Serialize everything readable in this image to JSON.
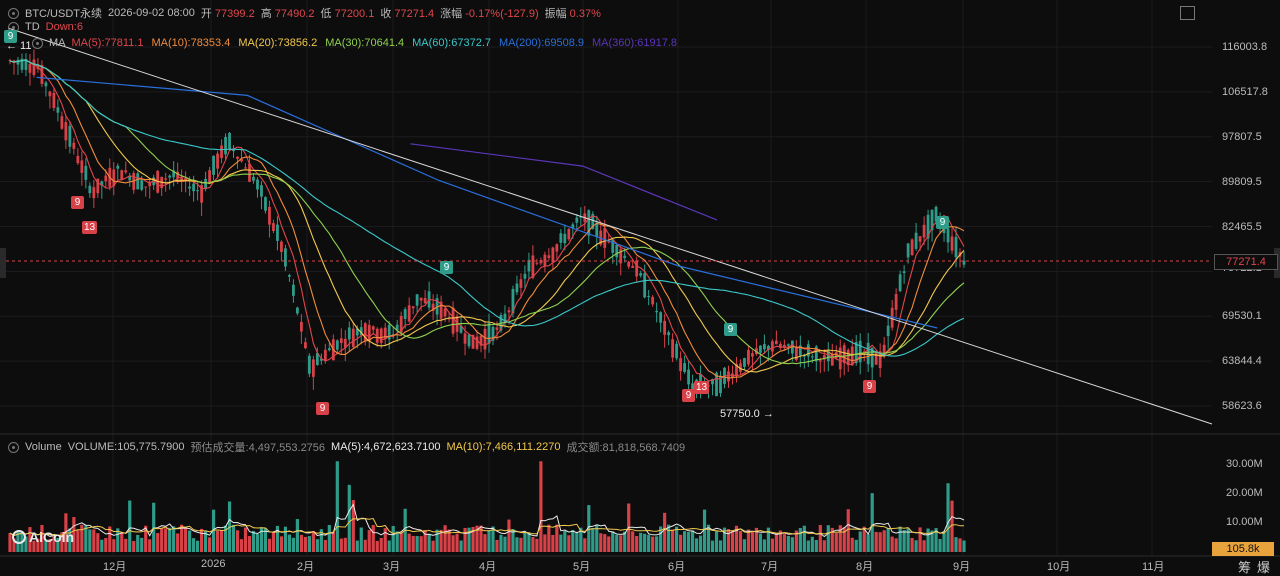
{
  "header": {
    "symbol": "BTC/USDT永续",
    "datetime": "2026-09-02 08:00",
    "open_label": "开",
    "open": "77399.2",
    "high_label": "高",
    "high": "77490.2",
    "low_label": "低",
    "low": "77200.1",
    "close_label": "收",
    "close": "77271.4",
    "change_label": "涨幅",
    "change": "-0.17%(-127.9)",
    "amp_label": "振幅",
    "amp": "0.37%"
  },
  "td": {
    "label": "TD",
    "value": "Down:6"
  },
  "ma": {
    "label": "MA",
    "items": [
      {
        "text": "MA(5):77811.1",
        "color": "#e0464b"
      },
      {
        "text": "MA(10):78353.4",
        "color": "#f08c3c"
      },
      {
        "text": "MA(20):73856.2",
        "color": "#f2c94c"
      },
      {
        "text": "MA(30):70641.4",
        "color": "#8fd14f"
      },
      {
        "text": "MA(60):67372.7",
        "color": "#3bc8c8"
      },
      {
        "text": "MA(200):69508.9",
        "color": "#2a6fdb"
      },
      {
        "text": "MA(360):61917.8",
        "color": "#5b36b8"
      }
    ]
  },
  "volume": {
    "label": "Volume",
    "vol": "VOLUME:105,775.7900",
    "est": "预估成交量:4,497,553.2756",
    "ma5": "MA(5):4,672,623.7100",
    "ma10": "MA(10):7,466,111.2270",
    "turnover": "成交额:81,818,568.7409"
  },
  "price_axis": [
    "116003.8",
    "106517.8",
    "97807.5",
    "89809.5",
    "82465.5",
    "75722.1",
    "69530.1",
    "63844.4",
    "58623.6"
  ],
  "current_price": "77271.4",
  "volume_axis": [
    "30.00M",
    "20.00M",
    "10.00M"
  ],
  "current_volume": "105.8k",
  "time_axis": [
    "12月",
    "2026",
    "2月",
    "3月",
    "4月",
    "5月",
    "6月",
    "7月",
    "8月",
    "9月",
    "10月",
    "11月"
  ],
  "annotations": {
    "low_value": "57750.0",
    "left_arrow": "← 11",
    "td_badges": [
      {
        "text": "9",
        "type": "green"
      },
      {
        "text": "9",
        "type": "red"
      },
      {
        "text": "13",
        "type": "red"
      },
      {
        "text": "9",
        "type": "red"
      },
      {
        "text": "9",
        "type": "green"
      },
      {
        "text": "9",
        "type": "green"
      },
      {
        "text": "9",
        "type": "red"
      },
      {
        "text": "13",
        "type": "red"
      },
      {
        "text": "9",
        "type": "red"
      },
      {
        "text": "9",
        "type": "green"
      }
    ]
  },
  "logo": "AiCoin",
  "toolbar": {
    "chip": "筹",
    "burst": "爆"
  },
  "colors": {
    "up": "#2f9c8a",
    "down": "#d74147",
    "background": "#0d0d0e",
    "trendline": "#d8d8d8"
  },
  "chart_data": {
    "type": "candlestick",
    "title": "BTC/USDT永续",
    "ylim": [
      55000,
      120000
    ],
    "price_ticks": [
      116003.8,
      106517.8,
      97807.5,
      89809.5,
      82465.5,
      75722.1,
      69530.1,
      63844.4,
      58623.6
    ],
    "volume_ticks": [
      30000000,
      20000000,
      10000000
    ],
    "series": [
      {
        "name": "MA(200)",
        "approx_path": [
          [
            0.03,
            109500
          ],
          [
            0.25,
            105800
          ],
          [
            0.45,
            90000
          ],
          [
            0.7,
            76500
          ],
          [
            0.97,
            68000
          ]
        ]
      },
      {
        "name": "MA(360)",
        "approx_path": [
          [
            0.42,
            96500
          ],
          [
            0.6,
            92500
          ],
          [
            0.74,
            83500
          ]
        ]
      }
    ],
    "close_path_approx": [
      113000,
      112000,
      100000,
      88000,
      92000,
      89000,
      91000,
      88000,
      97000,
      90000,
      79000,
      63000,
      66000,
      68000,
      67000,
      72000,
      70000,
      66000,
      68000,
      76000,
      79000,
      84000,
      80000,
      76000,
      68000,
      61000,
      61000,
      64000,
      66000,
      65000,
      64000,
      65000,
      64000,
      79000,
      84000,
      77271.4
    ],
    "lowest_marked": 57750.0,
    "current": 77271.4
  }
}
